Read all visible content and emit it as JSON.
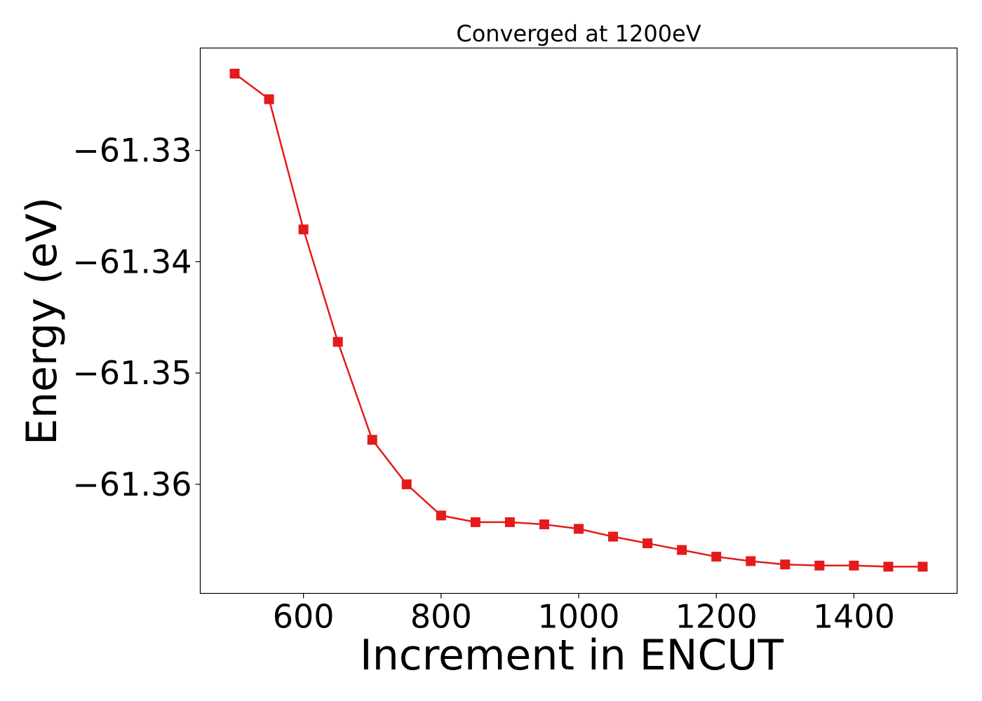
{
  "chart_data": {
    "type": "line",
    "title": "Converged at 1200eV",
    "xlabel": "Increment in ENCUT",
    "ylabel": "Energy (eV)",
    "xlim": [
      450,
      1550
    ],
    "ylim": [
      -61.3698,
      -61.3208
    ],
    "x_ticks": [
      600,
      800,
      1000,
      1200,
      1400
    ],
    "x_tick_labels": [
      "600",
      "800",
      "1000",
      "1200",
      "1400"
    ],
    "y_ticks": [
      -61.33,
      -61.34,
      -61.35,
      -61.36
    ],
    "y_tick_labels": [
      "−61.33",
      "−61.34",
      "−61.35",
      "−61.36"
    ],
    "grid": false,
    "series": [
      {
        "color": "#e41a1c",
        "marker": "square",
        "x": [
          500,
          550,
          600,
          650,
          700,
          750,
          800,
          850,
          900,
          950,
          1000,
          1050,
          1100,
          1150,
          1200,
          1250,
          1300,
          1350,
          1400,
          1450,
          1500
        ],
        "y": [
          -61.3231,
          -61.3254,
          -61.3371,
          -61.3472,
          -61.356,
          -61.36,
          -61.3628,
          -61.3634,
          -61.3634,
          -61.3636,
          -61.364,
          -61.3647,
          -61.3653,
          -61.3659,
          -61.3665,
          -61.3669,
          -61.3672,
          -61.3673,
          -61.3673,
          -61.3674,
          -61.3674
        ]
      }
    ]
  }
}
